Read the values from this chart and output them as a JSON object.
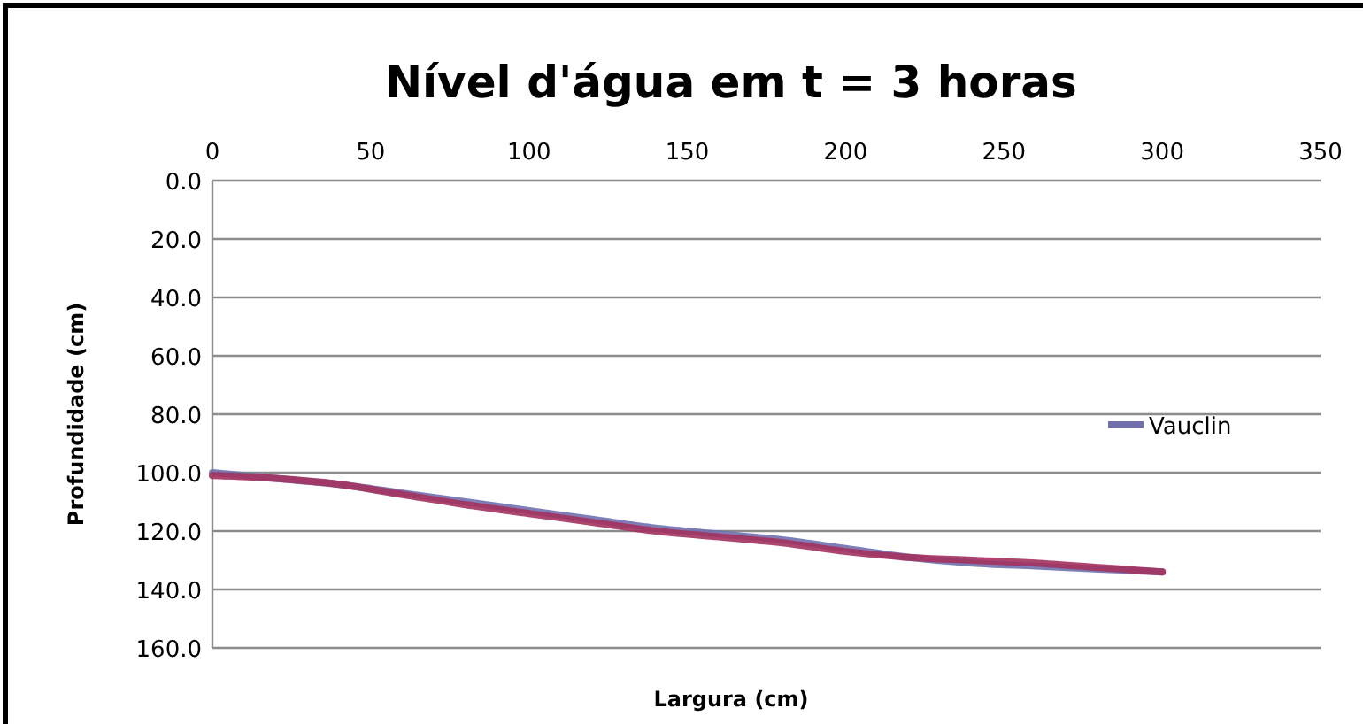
{
  "chart_data": {
    "type": "line",
    "title": "Nível d'água em t = 3 horas",
    "xlabel": "Largura (cm)",
    "ylabel": "Profundidade (cm)",
    "xlim": [
      0,
      350
    ],
    "xticks": [
      0,
      50,
      100,
      150,
      200,
      250,
      300,
      350
    ],
    "ylim": [
      160,
      0
    ],
    "yticks": [
      {
        "value": 0,
        "label": "0.0"
      },
      {
        "value": 20,
        "label": "20.0"
      },
      {
        "value": 40,
        "label": "40.0"
      },
      {
        "value": 60,
        "label": "60.0"
      },
      {
        "value": 80,
        "label": "80.0"
      },
      {
        "value": 100,
        "label": "100.0"
      },
      {
        "value": 120,
        "label": "120.0"
      },
      {
        "value": 140,
        "label": "140.0"
      },
      {
        "value": 160,
        "label": "160.0"
      }
    ],
    "grid": "y",
    "legend": "right",
    "marker": "none",
    "line_style": "solid",
    "x": [
      0,
      20,
      40,
      60,
      80,
      100,
      120,
      140,
      160,
      180,
      200,
      220,
      240,
      260,
      280,
      300
    ],
    "series": [
      {
        "name": "Vauclin",
        "color": "#6f70ad",
        "values": [
          100,
          102,
          104,
          107,
          110,
          113,
          116,
          119,
          121,
          123,
          126,
          129,
          131,
          132,
          133,
          134
        ]
      },
      {
        "color": "#a3325f",
        "values": [
          101,
          102,
          104,
          107.5,
          111,
          114,
          117,
          120,
          122,
          124,
          127,
          129,
          130,
          131,
          132.5,
          134
        ]
      }
    ]
  }
}
